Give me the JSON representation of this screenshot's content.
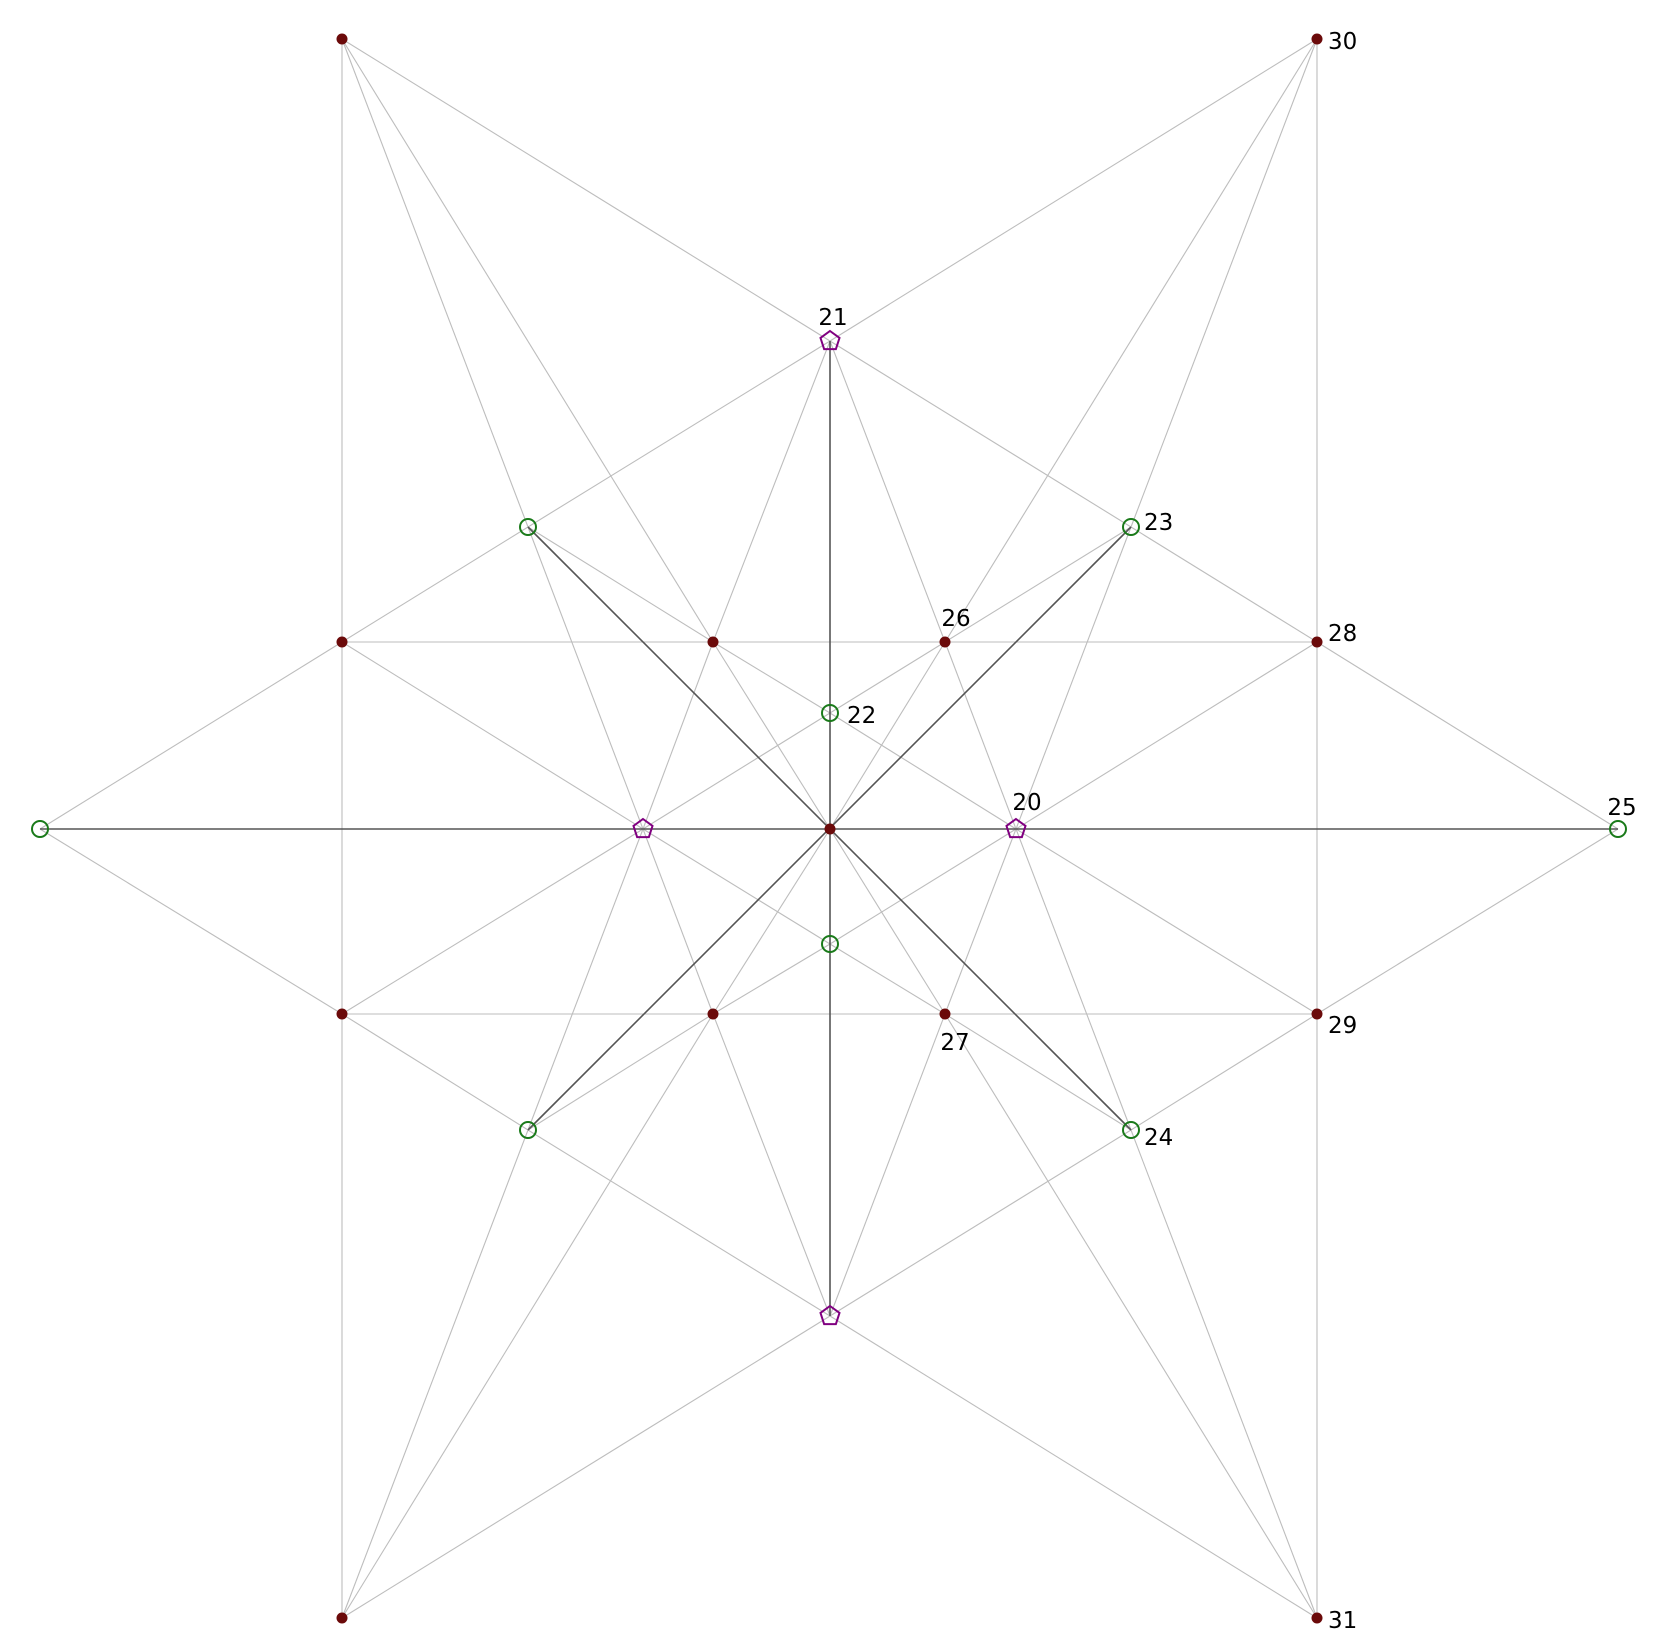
{
  "diagram": {
    "colors": {
      "light_edge": "#bdbdbd",
      "dark_edge": "#555555",
      "filled_node": "#6b0a0a",
      "circle_node": "#1a7a1a",
      "pentagon_node": "#800080"
    },
    "node_types": {
      "filled": "filled-dot",
      "circle": "hollow-circle",
      "pentagon": "hollow-pentagon"
    },
    "nodes": [
      {
        "id": "c",
        "label": "",
        "type": "filled"
      },
      {
        "id": "p20",
        "label": "20",
        "type": "pentagon"
      },
      {
        "id": "p21",
        "label": "21",
        "type": "pentagon"
      },
      {
        "id": "pL",
        "label": "",
        "type": "pentagon"
      },
      {
        "id": "pB",
        "label": "",
        "type": "pentagon"
      },
      {
        "id": "g22",
        "label": "22",
        "type": "circle"
      },
      {
        "id": "g23",
        "label": "23",
        "type": "circle"
      },
      {
        "id": "g24",
        "label": "24",
        "type": "circle"
      },
      {
        "id": "g25",
        "label": "25",
        "type": "circle"
      },
      {
        "id": "gTL",
        "label": "",
        "type": "circle"
      },
      {
        "id": "gBL",
        "label": "",
        "type": "circle"
      },
      {
        "id": "gL",
        "label": "",
        "type": "circle"
      },
      {
        "id": "gD",
        "label": "",
        "type": "circle"
      },
      {
        "id": "r26",
        "label": "26",
        "type": "filled"
      },
      {
        "id": "r27",
        "label": "27",
        "type": "filled"
      },
      {
        "id": "r28",
        "label": "28",
        "type": "filled"
      },
      {
        "id": "r29",
        "label": "29",
        "type": "filled"
      },
      {
        "id": "r30",
        "label": "30",
        "type": "filled"
      },
      {
        "id": "r31",
        "label": "31",
        "type": "filled"
      },
      {
        "id": "rTL",
        "label": "",
        "type": "filled"
      },
      {
        "id": "rBL",
        "label": "",
        "type": "filled"
      },
      {
        "id": "rML",
        "label": "",
        "type": "filled"
      },
      {
        "id": "rMLb",
        "label": "",
        "type": "filled"
      },
      {
        "id": "rIL",
        "label": "",
        "type": "filled"
      },
      {
        "id": "rILb",
        "label": "",
        "type": "filled"
      }
    ],
    "dark_edges": [
      [
        "gL",
        "g25"
      ],
      [
        "p21",
        "pB"
      ],
      [
        "gTL",
        "g24"
      ],
      [
        "g23",
        "gBL"
      ]
    ],
    "light_edges": [
      [
        "rTL",
        "rBL"
      ],
      [
        "r30",
        "r31"
      ],
      [
        "rML",
        "r28"
      ],
      [
        "rMLb",
        "r29"
      ],
      [
        "p21",
        "rTL"
      ],
      [
        "p21",
        "r30"
      ],
      [
        "pB",
        "rBL"
      ],
      [
        "pB",
        "r31"
      ],
      [
        "gTL",
        "rTL"
      ],
      [
        "rIL",
        "rTL"
      ],
      [
        "g23",
        "r30"
      ],
      [
        "r26",
        "r30"
      ],
      [
        "gBL",
        "rBL"
      ],
      [
        "rILb",
        "rBL"
      ],
      [
        "g24",
        "r31"
      ],
      [
        "r27",
        "r31"
      ],
      [
        "gL",
        "rML"
      ],
      [
        "gL",
        "rMLb"
      ],
      [
        "g25",
        "r28"
      ],
      [
        "g25",
        "r29"
      ],
      [
        "p21",
        "g23"
      ],
      [
        "p21",
        "gTL"
      ],
      [
        "pB",
        "g24"
      ],
      [
        "pB",
        "gBL"
      ],
      [
        "gTL",
        "rML"
      ],
      [
        "gBL",
        "rMLb"
      ],
      [
        "g23",
        "r28"
      ],
      [
        "g24",
        "r29"
      ],
      [
        "pL",
        "rML"
      ],
      [
        "pL",
        "rMLb"
      ],
      [
        "p20",
        "r28"
      ],
      [
        "p20",
        "r29"
      ],
      [
        "g22",
        "pL"
      ],
      [
        "g22",
        "p20"
      ],
      [
        "gD",
        "pL"
      ],
      [
        "gD",
        "p20"
      ],
      [
        "g22",
        "rIL"
      ],
      [
        "g22",
        "r26"
      ],
      [
        "gD",
        "rILb"
      ],
      [
        "gD",
        "r27"
      ],
      [
        "rIL",
        "pL"
      ],
      [
        "rILb",
        "pL"
      ],
      [
        "r26",
        "p20"
      ],
      [
        "r27",
        "p20"
      ],
      [
        "rIL",
        "p21"
      ],
      [
        "r26",
        "p21"
      ],
      [
        "rILb",
        "pB"
      ],
      [
        "r27",
        "pB"
      ],
      [
        "g23",
        "r26"
      ],
      [
        "g24",
        "r27"
      ],
      [
        "gTL",
        "rIL"
      ],
      [
        "gBL",
        "rILb"
      ],
      [
        "c",
        "rIL"
      ],
      [
        "c",
        "r26"
      ],
      [
        "c",
        "rILb"
      ],
      [
        "c",
        "r27"
      ],
      [
        "gTL",
        "pL"
      ],
      [
        "gBL",
        "pL"
      ],
      [
        "g23",
        "p20"
      ],
      [
        "g24",
        "p20"
      ]
    ]
  }
}
